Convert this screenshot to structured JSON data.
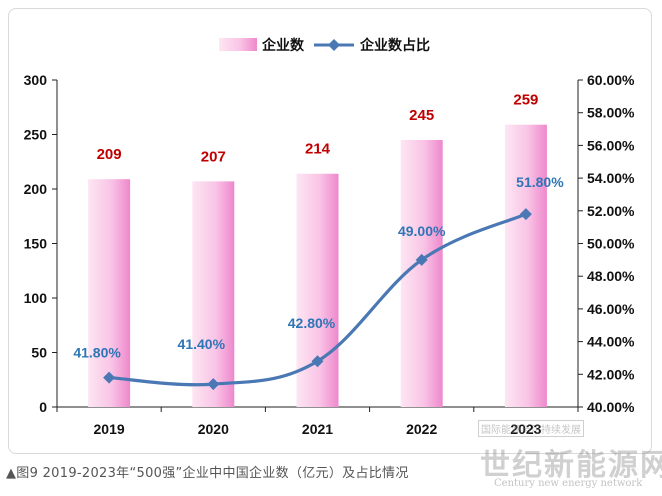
{
  "chart_data": {
    "type": "bar",
    "categories": [
      "2019",
      "2020",
      "2021",
      "2022",
      "2023"
    ],
    "series": [
      {
        "name": "企业数",
        "type": "bar",
        "axis": "left",
        "values": [
          209,
          207,
          214,
          245,
          259
        ],
        "labels": [
          "209",
          "207",
          "214",
          "245",
          "259"
        ]
      },
      {
        "name": "企业数占比",
        "type": "line",
        "axis": "right",
        "values": [
          41.8,
          41.4,
          42.8,
          49.0,
          51.8
        ],
        "labels": [
          "41.80%",
          "41.40%",
          "42.80%",
          "49.00%",
          "51.80%"
        ]
      }
    ],
    "ylim_left": [
      0,
      300
    ],
    "yticks_left": [
      "0",
      "50",
      "100",
      "150",
      "200",
      "250",
      "300"
    ],
    "ylim_right": [
      40,
      60
    ],
    "yticks_right": [
      "40.00%",
      "42.00%",
      "44.00%",
      "46.00%",
      "48.00%",
      "50.00%",
      "52.00%",
      "54.00%",
      "56.00%",
      "58.00%",
      "60.00%"
    ],
    "legend": "top-center",
    "grid": false
  },
  "caption": "▲图9 2019-2023年“500强”企业中中国企业数（亿元）及占比情况",
  "watermark": {
    "title": "世纪新能源网",
    "subtitle": "Century new energy network",
    "small": "国际能源与可持续发展"
  },
  "colors": {
    "bar_light": "#fde6f3",
    "bar_dark": "#f08fcf",
    "line": "#4a78b4",
    "bar_label": "#c00000",
    "point_label": "#2e75b6"
  }
}
